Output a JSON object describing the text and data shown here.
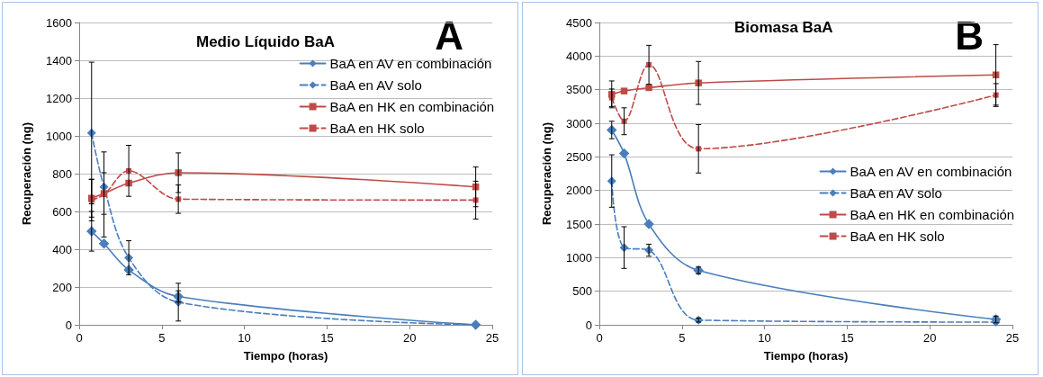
{
  "chart_data": [
    {
      "type": "line",
      "title": "Medio Líquido BaA",
      "xlabel": "Tiempo (horas)",
      "ylabel": "Recuperación (ng)",
      "annotations": [
        "A"
      ],
      "xlim": [
        0,
        25
      ],
      "xticks": [
        0,
        5,
        10,
        15,
        20,
        25
      ],
      "ylim": [
        0,
        1600
      ],
      "yticks": [
        0,
        200,
        400,
        600,
        800,
        1000,
        1200,
        1400,
        1600
      ],
      "grid": "y",
      "legend": "top right",
      "x": [
        0.75,
        1.5,
        3,
        6,
        24
      ],
      "series": [
        {
          "name": "BaA en AV en combinación",
          "color": "#4a7ebb",
          "marker": "diamond",
          "line_style": "solid",
          "values": [
            495,
            430,
            290,
            150,
            0
          ],
          "errors": [
            105,
            null,
            null,
            30,
            null
          ]
        },
        {
          "name": "BaA en AV solo",
          "color": "#4a7ebb",
          "marker": "diamond",
          "line_style": "dashed",
          "values": [
            1015,
            730,
            355,
            120,
            0
          ],
          "errors": [
            375,
            null,
            90,
            100,
            null
          ]
        },
        {
          "name": "BaA en HK en combinación",
          "color": "#be4b48",
          "marker": "square",
          "line_style": "solid",
          "values": [
            670,
            695,
            750,
            805,
            730
          ],
          "errors": [
            100,
            110,
            null,
            105,
            105
          ]
        },
        {
          "name": "BaA en HK solo",
          "color": "#be4b48",
          "marker": "square",
          "line_style": "dashed",
          "values": [
            660,
            690,
            815,
            665,
            660
          ],
          "errors": [
            110,
            225,
            135,
            75,
            100
          ]
        }
      ]
    },
    {
      "type": "line",
      "title": "Biomasa BaA",
      "xlabel": "Tiempo (horas)",
      "ylabel": "Recuperación (ng)",
      "annotations": [
        "B"
      ],
      "xlim": [
        0,
        25
      ],
      "xticks": [
        0,
        5,
        10,
        15,
        20,
        25
      ],
      "ylim": [
        0,
        4500
      ],
      "yticks": [
        0,
        500,
        1000,
        1500,
        2000,
        2500,
        3000,
        3500,
        4000,
        4500
      ],
      "grid": "y",
      "legend": "right",
      "x": [
        0.75,
        1.5,
        3,
        6,
        24
      ],
      "series": [
        {
          "name": "BaA en AV en combinación",
          "color": "#4a7ebb",
          "marker": "diamond",
          "line_style": "solid",
          "values": [
            2900,
            2550,
            1500,
            810,
            80
          ],
          "errors": [
            130,
            null,
            null,
            50,
            50
          ]
        },
        {
          "name": "BaA en AV solo",
          "color": "#4a7ebb",
          "marker": "diamond",
          "line_style": "dashed",
          "values": [
            2140,
            1150,
            1110,
            70,
            40
          ],
          "errors": [
            390,
            310,
            90,
            30,
            null
          ]
        },
        {
          "name": "BaA en HK en combinación",
          "color": "#be4b48",
          "marker": "square",
          "line_style": "solid",
          "values": [
            3430,
            3480,
            3530,
            3600,
            3720
          ],
          "errors": [
            200,
            null,
            null,
            320,
            450
          ]
        },
        {
          "name": "BaA en HK solo",
          "color": "#be4b48",
          "marker": "square",
          "line_style": "dashed",
          "values": [
            3380,
            3030,
            3870,
            2620,
            3420
          ],
          "errors": [
            130,
            200,
            290,
            360,
            170
          ]
        }
      ]
    }
  ]
}
